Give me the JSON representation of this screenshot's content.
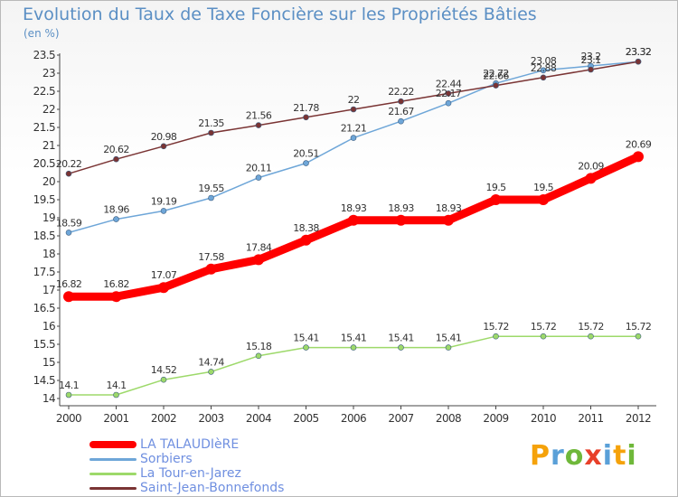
{
  "title": "Evolution du Taux de Taxe Foncière sur les Propriétés Bâties",
  "unit_label": "(en %)",
  "logo_text": "Proxiti",
  "chart_data": {
    "type": "line",
    "title": "Evolution du Taux de Taxe Foncière sur les Propriétés Bâties",
    "ylabel": "(en %)",
    "xlabel": "",
    "x": [
      "2000",
      "2001",
      "2002",
      "2003",
      "2004",
      "2005",
      "2006",
      "2007",
      "2008",
      "2009",
      "2010",
      "2011",
      "2012"
    ],
    "ylim": [
      14,
      23.5
    ],
    "yticks": [
      "14",
      "14.5",
      "15",
      "15.5",
      "16",
      "16.5",
      "17",
      "17.5",
      "18",
      "18.5",
      "19",
      "19.5",
      "20",
      "20.5",
      "21",
      "21.5",
      "22",
      "22.5",
      "23",
      "23.5"
    ],
    "grid": false,
    "legend": "bottom-left",
    "series": [
      {
        "name": "LA TALAUDIèRE",
        "color": "#ff0000",
        "width": 9,
        "values": [
          16.82,
          16.82,
          17.07,
          17.58,
          17.84,
          18.38,
          18.93,
          18.93,
          18.93,
          19.5,
          19.5,
          20.09,
          20.69
        ],
        "labels": [
          "16.82",
          "16.82",
          "17.07",
          "17.58",
          "17.84",
          "18.38",
          "18.93",
          "18.93",
          "18.93",
          "19.5",
          "19.5",
          "20.09",
          "20.69"
        ]
      },
      {
        "name": "Sorbiers",
        "color": "#6ea6d8",
        "width": 1.5,
        "values": [
          18.59,
          18.96,
          19.19,
          19.55,
          20.11,
          20.51,
          21.21,
          21.67,
          22.17,
          22.72,
          23.08,
          23.2,
          23.32
        ],
        "labels": [
          "18.59",
          "18.96",
          "19.19",
          "19.55",
          "20.11",
          "20.51",
          "21.21",
          "21.67",
          "22.17",
          "22.72",
          "23.08",
          "23.2",
          "23.32"
        ]
      },
      {
        "name": "La Tour-en-Jarez",
        "color": "#9dd96a",
        "width": 1.5,
        "values": [
          14.1,
          14.1,
          14.52,
          14.74,
          15.18,
          15.41,
          15.41,
          15.41,
          15.41,
          15.72,
          15.72,
          15.72,
          15.72
        ],
        "labels": [
          "14.1",
          "14.1",
          "14.52",
          "14.74",
          "15.18",
          "15.41",
          "15.41",
          "15.41",
          "15.41",
          "15.72",
          "15.72",
          "15.72",
          "15.72"
        ]
      },
      {
        "name": "Saint-Jean-Bonnefonds",
        "color": "#7a3434",
        "width": 1.5,
        "values": [
          20.22,
          20.62,
          20.98,
          21.35,
          21.56,
          21.78,
          22,
          22.22,
          22.44,
          22.66,
          22.88,
          23.1,
          23.32
        ],
        "labels": [
          "20.22",
          "20.62",
          "20.98",
          "21.35",
          "21.56",
          "21.78",
          "22",
          "22.22",
          "22.44",
          "22.66",
          "22.88",
          "23.1",
          "23.32"
        ]
      }
    ]
  }
}
